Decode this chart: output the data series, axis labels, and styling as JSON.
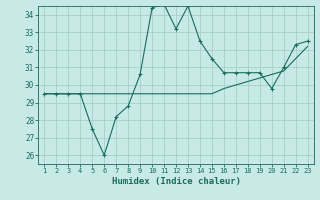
{
  "xlabel": "Humidex (Indice chaleur)",
  "x": [
    1,
    2,
    3,
    4,
    5,
    6,
    7,
    8,
    9,
    10,
    11,
    12,
    13,
    14,
    15,
    16,
    17,
    18,
    19,
    20,
    21,
    22,
    23
  ],
  "y_curve": [
    29.5,
    29.5,
    29.5,
    29.5,
    27.5,
    26.0,
    28.2,
    28.8,
    30.6,
    34.4,
    34.6,
    33.2,
    34.5,
    32.5,
    31.5,
    30.7,
    30.7,
    30.7,
    30.7,
    29.8,
    31.0,
    32.3,
    32.5
  ],
  "y_trend": [
    29.5,
    29.5,
    29.5,
    29.5,
    29.5,
    29.5,
    29.5,
    29.5,
    29.5,
    29.5,
    29.5,
    29.5,
    29.5,
    29.5,
    29.5,
    29.8,
    30.0,
    30.2,
    30.4,
    30.6,
    30.8,
    31.5,
    32.2
  ],
  "bg_color": "#c8eae6",
  "grid_color": "#aacfcb",
  "line_color": "#1a6b5e",
  "ylim": [
    25.5,
    34.5
  ],
  "yticks": [
    26,
    27,
    28,
    29,
    30,
    31,
    32,
    33,
    34
  ],
  "xlim": [
    0.5,
    23.5
  ],
  "xticks": [
    1,
    2,
    3,
    4,
    5,
    6,
    7,
    8,
    9,
    10,
    11,
    12,
    13,
    14,
    15,
    16,
    17,
    18,
    19,
    20,
    21,
    22,
    23
  ]
}
